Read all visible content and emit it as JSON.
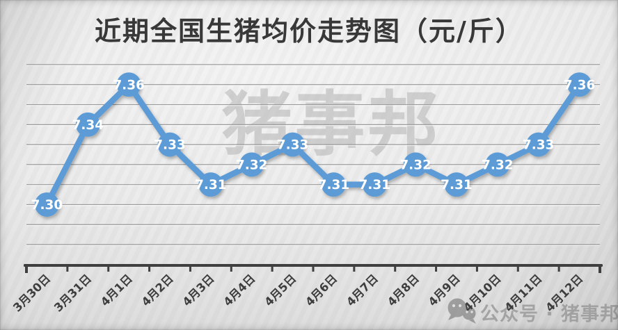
{
  "title": "近期全国生猪均价走势图（元/斤）",
  "watermarks": {
    "center": "猪事邦",
    "bottom_icon": "wechat-chat-bubbles-icon",
    "bottom_text": "公众号 · 猪事邦"
  },
  "chart_data": {
    "type": "line",
    "title": "近期全国生猪均价走势图（元/斤）",
    "unit": "元/斤",
    "categories": [
      "3月30日",
      "3月31日",
      "4月1日",
      "4月2日",
      "4月3日",
      "4月4日",
      "4月5日",
      "4月6日",
      "4月7日",
      "4月8日",
      "4月9日",
      "4月10日",
      "4月11日",
      "4月12日"
    ],
    "values": [
      7.3,
      7.34,
      7.36,
      7.33,
      7.31,
      7.32,
      7.33,
      7.31,
      7.31,
      7.32,
      7.31,
      7.32,
      7.33,
      7.36
    ],
    "data_labels": [
      "7.30",
      "7.34",
      "7.36",
      "7.33",
      "7.31",
      "7.32",
      "7.33",
      "7.31",
      "7.31",
      "7.32",
      "7.31",
      "7.32",
      "7.33",
      "7.36"
    ],
    "ylim": [
      7.27,
      7.37
    ],
    "grid_step": 0.01,
    "gridlines": true,
    "legend": "none",
    "x_label_rotation": -45,
    "xlabel": "",
    "ylabel": ""
  },
  "colors": {
    "line_blue": "#5B9BD5",
    "data_label_text": "#FFFFFF",
    "axis_dark": "#3F3F3F",
    "gridline_gray": "#9B9B9B",
    "x_label_gray": "#3D3D3D",
    "title_gray": "#383838",
    "watermark_gray": "#B3B3B3",
    "bottom_watermark_gray": "#8F8F8F"
  }
}
